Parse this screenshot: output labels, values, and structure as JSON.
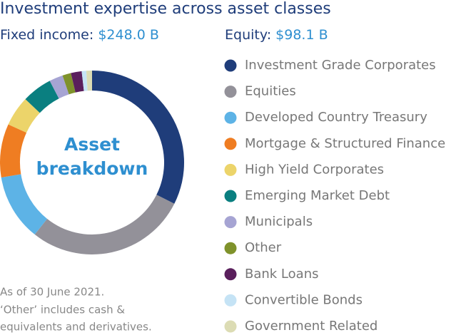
{
  "chart_data": {
    "type": "donut",
    "title": "Investment expertise across asset classes",
    "fixed_income_label": "Fixed income:",
    "fixed_income_value": "$248.0 B",
    "equity_label": "Equity:",
    "equity_value": "$98.1 B",
    "center_label": [
      "Asset",
      "breakdown"
    ],
    "footnote": [
      "As of 30 June 2021.",
      "‘Other’ includes cash &",
      "equivalents and derivatives."
    ],
    "categories": [
      "Investment Grade Corporates",
      "Equities",
      "Developed Country Treasury",
      "Mortgage & Structured Finance",
      "High Yield Corporates",
      "Emerging Market Debt",
      "Municipals",
      "Other",
      "Bank Loans",
      "Convertible Bonds",
      "Government Related"
    ],
    "values": [
      32.4,
      28.3,
      11.7,
      9.4,
      5.3,
      5.3,
      2.4,
      1.5,
      1.9,
      0.8,
      1.0
    ],
    "colors": [
      "#1f3d7a",
      "#939199",
      "#5db3e6",
      "#ef7d22",
      "#ecd46a",
      "#0a7f80",
      "#a6a4d3",
      "#7f922b",
      "#5a1f5c",
      "#c5e3f5",
      "#dcdcb4"
    ]
  }
}
